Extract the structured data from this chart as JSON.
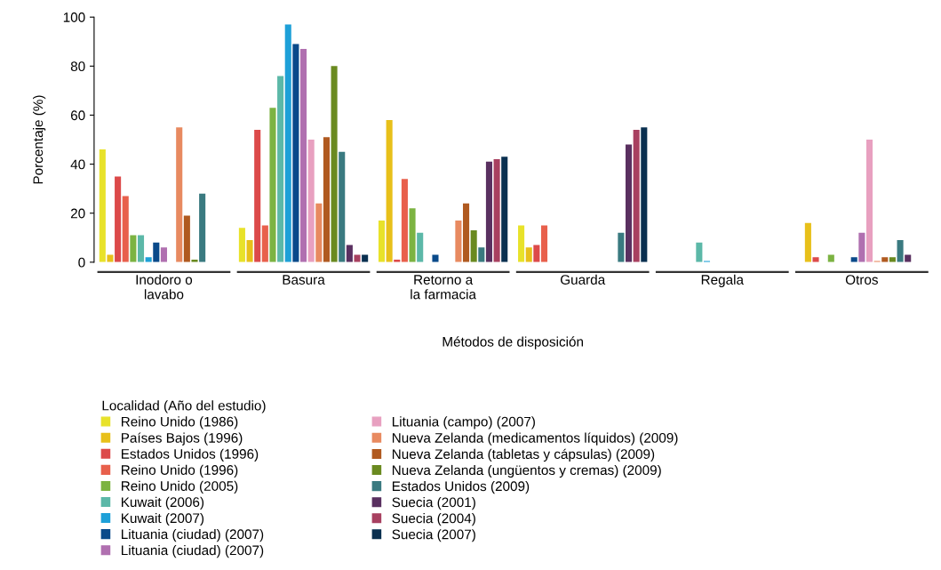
{
  "chart_data": {
    "type": "bar",
    "xlabel": "Métodos de disposición",
    "ylabel": "Porcentaje (%)",
    "legend_title": "Localidad (Año del estudio)",
    "legend": "bottom",
    "grid": false,
    "categories": [
      "Inodoro o\nlavabo",
      "Basura",
      "Retorno a\nla farmacia",
      "Guarda",
      "Regala",
      "Otros"
    ],
    "ylim": [
      0,
      100
    ],
    "yticks": [
      0,
      20,
      40,
      60,
      80,
      100
    ],
    "series": [
      {
        "name": "Reino Unido (1986)",
        "color": "#e8e22a",
        "values": [
          46,
          14,
          17,
          15,
          null,
          null
        ]
      },
      {
        "name": "Países Bajos (1996)",
        "color": "#e8c01a",
        "values": [
          3,
          9,
          58,
          6,
          null,
          16
        ]
      },
      {
        "name": "Estados Unidos (1996)",
        "color": "#dc4a4a",
        "values": [
          35,
          54,
          1,
          7,
          null,
          2
        ]
      },
      {
        "name": "Reino Unido (1996)",
        "color": "#e8604c",
        "values": [
          27,
          15,
          34,
          15,
          null,
          null
        ]
      },
      {
        "name": "Reino Unido (2005)",
        "color": "#7cb342",
        "values": [
          11,
          63,
          22,
          null,
          null,
          3
        ]
      },
      {
        "name": "Kuwait (2006)",
        "color": "#5cb8a8",
        "values": [
          11,
          76,
          12,
          null,
          8,
          null
        ]
      },
      {
        "name": "Kuwait (2007)",
        "color": "#1ea0d8",
        "values": [
          2,
          97,
          null,
          null,
          0.5,
          null
        ]
      },
      {
        "name": "Lituania (ciudad) (2007)",
        "color": "#0a4a8a",
        "values": [
          8,
          89,
          3,
          null,
          null,
          2
        ]
      },
      {
        "name": "Lituania (ciudad) (2007)",
        "color": "#b070b0",
        "values": [
          6,
          87,
          null,
          null,
          null,
          12
        ]
      },
      {
        "name": "Lituania (campo) (2007)",
        "color": "#e8a0c0",
        "values": [
          null,
          50,
          null,
          null,
          null,
          50
        ]
      },
      {
        "name": "Nueva Zelanda (medicamentos líquidos) (2009)",
        "color": "#e88a60",
        "values": [
          55,
          24,
          17,
          null,
          null,
          0.5
        ]
      },
      {
        "name": "Nueva Zelanda (tabletas y cápsulas) (2009)",
        "color": "#b05a20",
        "values": [
          19,
          51,
          24,
          null,
          null,
          2
        ]
      },
      {
        "name": "Nueva Zelanda (ungüentos y cremas) (2009)",
        "color": "#6a8a20",
        "values": [
          1,
          80,
          13,
          null,
          null,
          2
        ]
      },
      {
        "name": "Estados Unidos (2009)",
        "color": "#3a7a80",
        "values": [
          28,
          45,
          6,
          12,
          null,
          9
        ]
      },
      {
        "name": "Suecia (2001)",
        "color": "#5a3060",
        "values": [
          null,
          7,
          41,
          48,
          null,
          3
        ]
      },
      {
        "name": "Suecia (2004)",
        "color": "#a84060",
        "values": [
          null,
          3,
          42,
          54,
          null,
          null
        ]
      },
      {
        "name": "Suecia (2007)",
        "color": "#0a3050",
        "values": [
          null,
          3,
          43,
          55,
          null,
          null
        ]
      }
    ]
  }
}
